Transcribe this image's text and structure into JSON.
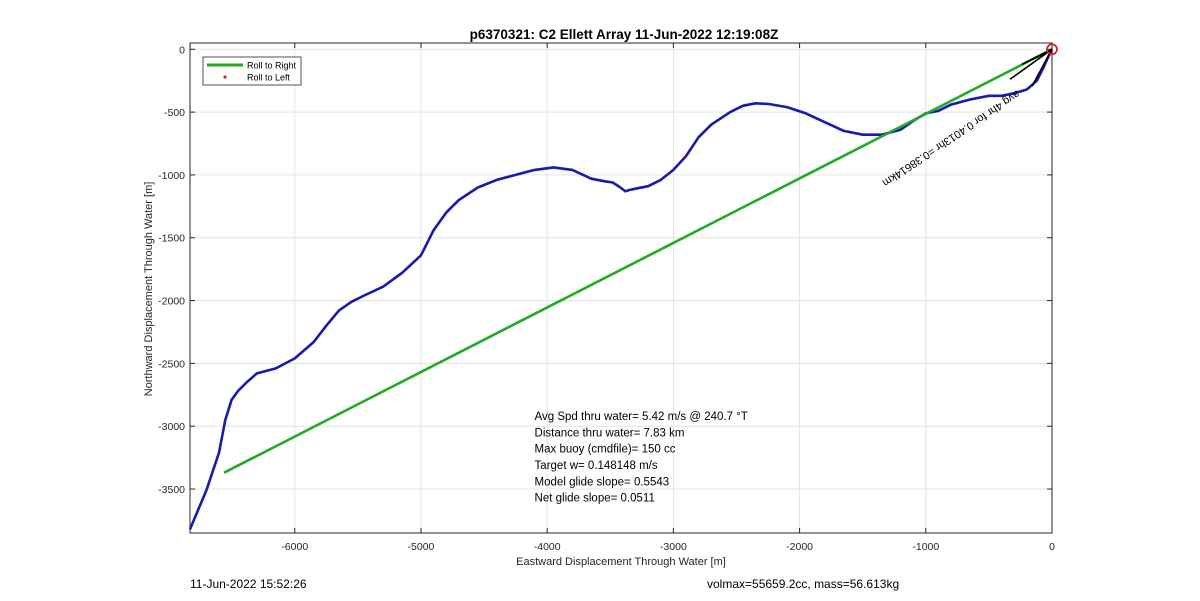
{
  "chart_data": {
    "type": "line",
    "title": "p6370321: C2 Ellett Array 11-Jun-2022 12:19:08Z",
    "xlabel": "Eastward Displacement Through Water [m]",
    "ylabel": "Northward Displacement Through Water [m]",
    "xlim": [
      -6830,
      0
    ],
    "ylim": [
      -3850,
      50
    ],
    "x_ticks": [
      -6000,
      -5000,
      -4000,
      -3000,
      -2000,
      -1000,
      0
    ],
    "y_ticks": [
      0,
      -500,
      -1000,
      -1500,
      -2000,
      -2500,
      -3000,
      -3500
    ],
    "grid": true,
    "legend": {
      "placement": "top-left",
      "entries": [
        {
          "label": "Roll to Right",
          "color": "#22aa22",
          "style": "line"
        },
        {
          "label": "Roll to Left",
          "color": "#dd2222",
          "style": "dot"
        }
      ]
    },
    "series": [
      {
        "color": "#1a1aaa",
        "x": [
          0,
          -25,
          -70,
          -120,
          -200,
          -300,
          -400,
          -500,
          -650,
          -800,
          -900,
          -1000,
          -1100,
          -1200,
          -1350,
          -1500,
          -1650,
          -1800,
          -1950,
          -2100,
          -2250,
          -2350,
          -2450,
          -2550,
          -2700,
          -2800,
          -2900,
          -3000,
          -3100,
          -3200,
          -3300,
          -3350,
          -3380,
          -3420,
          -3480,
          -3550,
          -3650,
          -3800,
          -3950,
          -4100,
          -4250,
          -4400,
          -4550,
          -4700,
          -4800,
          -4900,
          -5000,
          -5150,
          -5300,
          -5450,
          -5550,
          -5650,
          -5750,
          -5850,
          -6000,
          -6150,
          -6300,
          -6380,
          -6450,
          -6500,
          -6550,
          -6600,
          -6700,
          -6830
        ],
        "y": [
          0,
          -50,
          -150,
          -250,
          -320,
          -350,
          -370,
          -370,
          -400,
          -440,
          -490,
          -510,
          -570,
          -640,
          -680,
          -680,
          -650,
          -580,
          -510,
          -460,
          -435,
          -430,
          -450,
          -500,
          -600,
          -700,
          -850,
          -960,
          -1040,
          -1090,
          -1110,
          -1120,
          -1130,
          -1100,
          -1060,
          -1050,
          -1030,
          -960,
          -940,
          -960,
          -1000,
          -1040,
          -1100,
          -1200,
          -1300,
          -1440,
          -1640,
          -1780,
          -1890,
          -1960,
          -2010,
          -2080,
          -2200,
          -2330,
          -2460,
          -2540,
          -2580,
          -2650,
          -2720,
          -2790,
          -2950,
          -3210,
          -3510,
          -3820
        ]
      },
      {
        "name": "Roll to Right",
        "color": "#22aa22",
        "x": [
          0,
          -6560
        ],
        "y": [
          0,
          -3370
        ]
      }
    ],
    "annotations": [
      {
        "text": "Avg Spd thru water=  5.42 m/s @ 240.7 °T",
        "x": -4100,
        "y": -2950
      },
      {
        "text": "Distance thru water=  7.83 km",
        "x": -4100,
        "y": -3080
      },
      {
        "text": "Max buoy (cmdfile)= 150 cc",
        "x": -4100,
        "y": -3210
      },
      {
        "text": "Target w= 0.148148 m/s",
        "x": -4100,
        "y": -3340
      },
      {
        "text": "Model glide slope= 0.5543",
        "x": -4100,
        "y": -3470
      },
      {
        "text": "Net glide slope= 0.0511",
        "x": -4100,
        "y": -3600
      }
    ],
    "rotated_label": {
      "text": "avg 4hr for 0.4013hr =0.38614km",
      "x": -1350,
      "y": -1050,
      "angle": -34
    },
    "end_marker": {
      "x": 0,
      "y": 0,
      "color": "#dd2222"
    }
  },
  "footer": {
    "timestamp": "11-Jun-2022 15:52:26",
    "stats": "volmax=55659.2cc, mass=56.613kg"
  }
}
